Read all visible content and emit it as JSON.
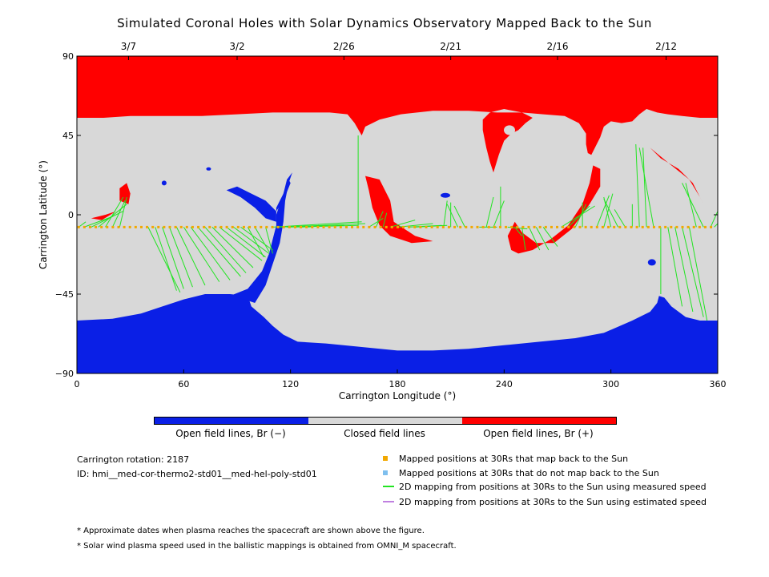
{
  "title": "Simulated Coronal Holes with Solar Dynamics Observatory Mapped Back to the Sun",
  "chart_data": {
    "type": "map",
    "xlabel": "Carrington Longitude (°)",
    "ylabel": "Carrington Latitude (°)",
    "xlim": [
      0,
      360
    ],
    "ylim": [
      -90,
      90
    ],
    "x_ticks": [
      "0",
      "60",
      "120",
      "180",
      "240",
      "300",
      "360"
    ],
    "y_ticks": [
      "90",
      "45",
      "0",
      "−45",
      "−90"
    ],
    "top_axis_dates": [
      {
        "label": "3/7",
        "lon": 29
      },
      {
        "label": "3/2",
        "lon": 90
      },
      {
        "label": "2/26",
        "lon": 150
      },
      {
        "label": "2/21",
        "lon": 210
      },
      {
        "label": "2/16",
        "lon": 270
      },
      {
        "label": "2/12",
        "lon": 331
      }
    ],
    "colors": {
      "open_negative": "#0a1fe6",
      "closed": "#d8d8d8",
      "open_positive": "#ff0000",
      "mapped": "#f2a800",
      "not_mapped": "#7fbfee",
      "measured": "#22e422",
      "estimated": "#c080e0"
    },
    "footpoints_lat": -7,
    "footpoints_lon_start": 1,
    "footpoints_lon_end": 358,
    "mapping_lines": [
      [
        1,
        -7,
        5,
        -4
      ],
      [
        4,
        -7,
        20,
        -1
      ],
      [
        8,
        -7,
        26,
        2
      ],
      [
        12,
        -7,
        28,
        6
      ],
      [
        16,
        -7,
        26,
        10
      ],
      [
        20,
        -7,
        27,
        8
      ],
      [
        24,
        -7,
        28,
        10
      ],
      [
        40,
        -7,
        58,
        -44
      ],
      [
        44,
        -7,
        56,
        -43
      ],
      [
        48,
        -7,
        60,
        -42
      ],
      [
        52,
        -7,
        65,
        -41
      ],
      [
        56,
        -7,
        72,
        -40
      ],
      [
        60,
        -7,
        80,
        -38
      ],
      [
        64,
        -7,
        86,
        -37
      ],
      [
        68,
        -7,
        92,
        -35
      ],
      [
        72,
        -7,
        95,
        -33
      ],
      [
        76,
        -7,
        99,
        -30
      ],
      [
        80,
        -7,
        104,
        -26
      ],
      [
        84,
        -7,
        106,
        -24
      ],
      [
        88,
        -7,
        108,
        -22
      ],
      [
        92,
        -7,
        110,
        -20
      ],
      [
        96,
        -7,
        105,
        -24
      ],
      [
        100,
        -7,
        108,
        -21
      ],
      [
        106,
        -7,
        110,
        -22
      ],
      [
        110,
        -7,
        160,
        -4
      ],
      [
        114,
        -7,
        162,
        -5
      ],
      [
        118,
        -7,
        158,
        -6
      ],
      [
        122,
        -7,
        150,
        -6
      ],
      [
        126,
        -7,
        140,
        -6
      ],
      [
        130,
        -7,
        136,
        -6
      ],
      [
        158,
        -7,
        158,
        45
      ],
      [
        164,
        -7,
        172,
        -2
      ],
      [
        168,
        -7,
        172,
        2
      ],
      [
        172,
        -7,
        174,
        1
      ],
      [
        176,
        -7,
        190,
        -3
      ],
      [
        180,
        -7,
        200,
        -5
      ],
      [
        186,
        -7,
        205,
        -6
      ],
      [
        190,
        -7,
        208,
        -6
      ],
      [
        206,
        -7,
        208,
        8
      ],
      [
        210,
        -7,
        210,
        7
      ],
      [
        214,
        -7,
        208,
        6
      ],
      [
        218,
        -7,
        212,
        5
      ],
      [
        226,
        -7,
        236,
        -7
      ],
      [
        230,
        -7,
        234,
        10
      ],
      [
        234,
        -7,
        240,
        8
      ],
      [
        238,
        -7,
        238,
        16
      ],
      [
        242,
        -7,
        253,
        -8
      ],
      [
        246,
        -7,
        250,
        -12
      ],
      [
        250,
        -7,
        252,
        -20
      ],
      [
        254,
        -7,
        260,
        -20
      ],
      [
        258,
        -7,
        265,
        -20
      ],
      [
        262,
        -7,
        270,
        -18
      ],
      [
        272,
        -7,
        291,
        5
      ],
      [
        276,
        -7,
        288,
        5
      ],
      [
        280,
        -7,
        286,
        6
      ],
      [
        284,
        -7,
        284,
        7
      ],
      [
        292,
        -7,
        299,
        11
      ],
      [
        296,
        -7,
        301,
        12
      ],
      [
        300,
        -7,
        296,
        10
      ],
      [
        304,
        -7,
        296,
        9
      ],
      [
        308,
        -7,
        302,
        3
      ],
      [
        312,
        -7,
        312,
        6
      ],
      [
        316,
        -7,
        314,
        40
      ],
      [
        320,
        -7,
        318,
        38
      ],
      [
        324,
        -7,
        316,
        38
      ],
      [
        328,
        -7,
        328,
        -45
      ],
      [
        332,
        -7,
        340,
        -52
      ],
      [
        336,
        -7,
        346,
        -55
      ],
      [
        340,
        -7,
        352,
        -58
      ],
      [
        344,
        -7,
        354,
        -60
      ],
      [
        348,
        -7,
        342,
        18
      ],
      [
        352,
        -7,
        340,
        18
      ],
      [
        356,
        -7,
        362,
        2
      ],
      [
        358,
        -7,
        360,
        -5
      ]
    ]
  },
  "colorbar": {
    "labels": [
      "Open field lines, Br (−)",
      "Closed field lines",
      "Open field lines, Br (+)"
    ]
  },
  "info": {
    "rotation": "Carrington rotation: 2187",
    "id": "ID: hmi__med-cor-thermo2-std01__med-hel-poly-std01"
  },
  "legend": [
    {
      "text": "Mapped positions at 30Rs that map back to the Sun",
      "kind": "square",
      "color": "#f2a800"
    },
    {
      "text": "Mapped positions at 30Rs that do not map back to the Sun",
      "kind": "square",
      "color": "#7fbfee"
    },
    {
      "text": "2D mapping from positions at 30Rs to the Sun using measured speed",
      "kind": "line",
      "color": "#22e422"
    },
    {
      "text": "2D mapping from positions at 30Rs to the Sun using estimated speed",
      "kind": "line",
      "color": "#c080e0"
    }
  ],
  "notes": [
    "* Approximate dates when plasma reaches the spacecraft are shown above the figure.",
    "* Solar wind plasma speed used in the ballistic mappings is obtained from OMNI_M spacecraft."
  ]
}
